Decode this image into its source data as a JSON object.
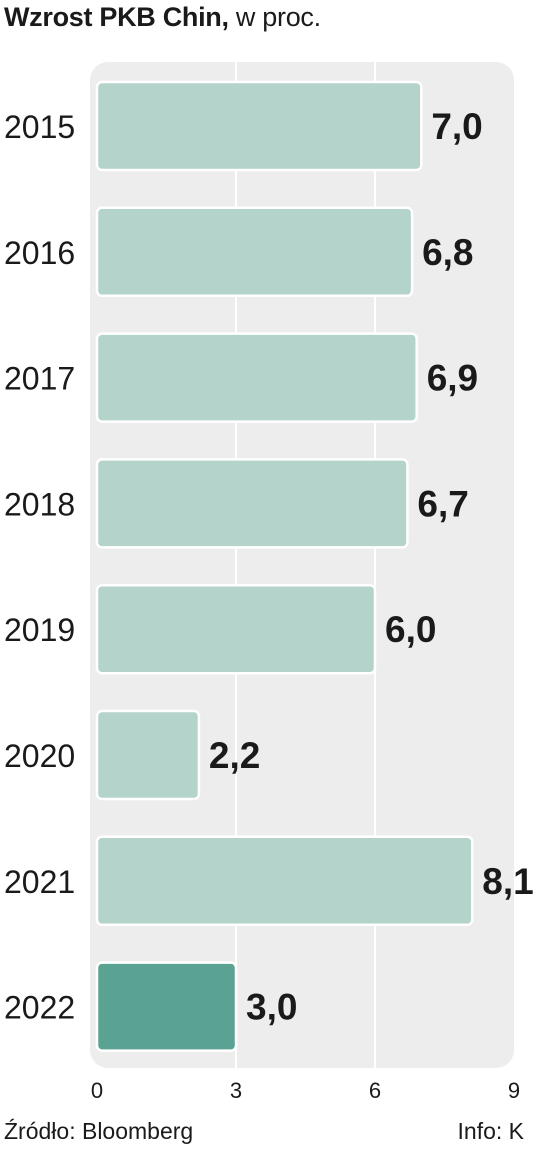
{
  "header": {
    "title_bold": "Wzrost PKB Chin,",
    "title_rest": " w proc."
  },
  "chart_data": {
    "type": "bar",
    "orientation": "horizontal",
    "categories": [
      "2015",
      "2016",
      "2017",
      "2018",
      "2019",
      "2020",
      "2021",
      "2022"
    ],
    "values": [
      7.0,
      6.8,
      6.9,
      6.7,
      6.0,
      2.2,
      8.1,
      3.0
    ],
    "value_labels": [
      "7,0",
      "6,8",
      "6,9",
      "6,7",
      "6,0",
      "2,2",
      "8,1",
      "3,0"
    ],
    "xlim": [
      0,
      9
    ],
    "xticks": [
      0,
      3,
      6,
      9
    ],
    "grid": true,
    "bar_color": "#b4d3cb",
    "highlight_color": "#5aa392",
    "highlight_index": 7,
    "panel_color": "#ededed"
  },
  "footer": {
    "source": "Źródło: Bloomberg",
    "credit": "Info: K"
  }
}
